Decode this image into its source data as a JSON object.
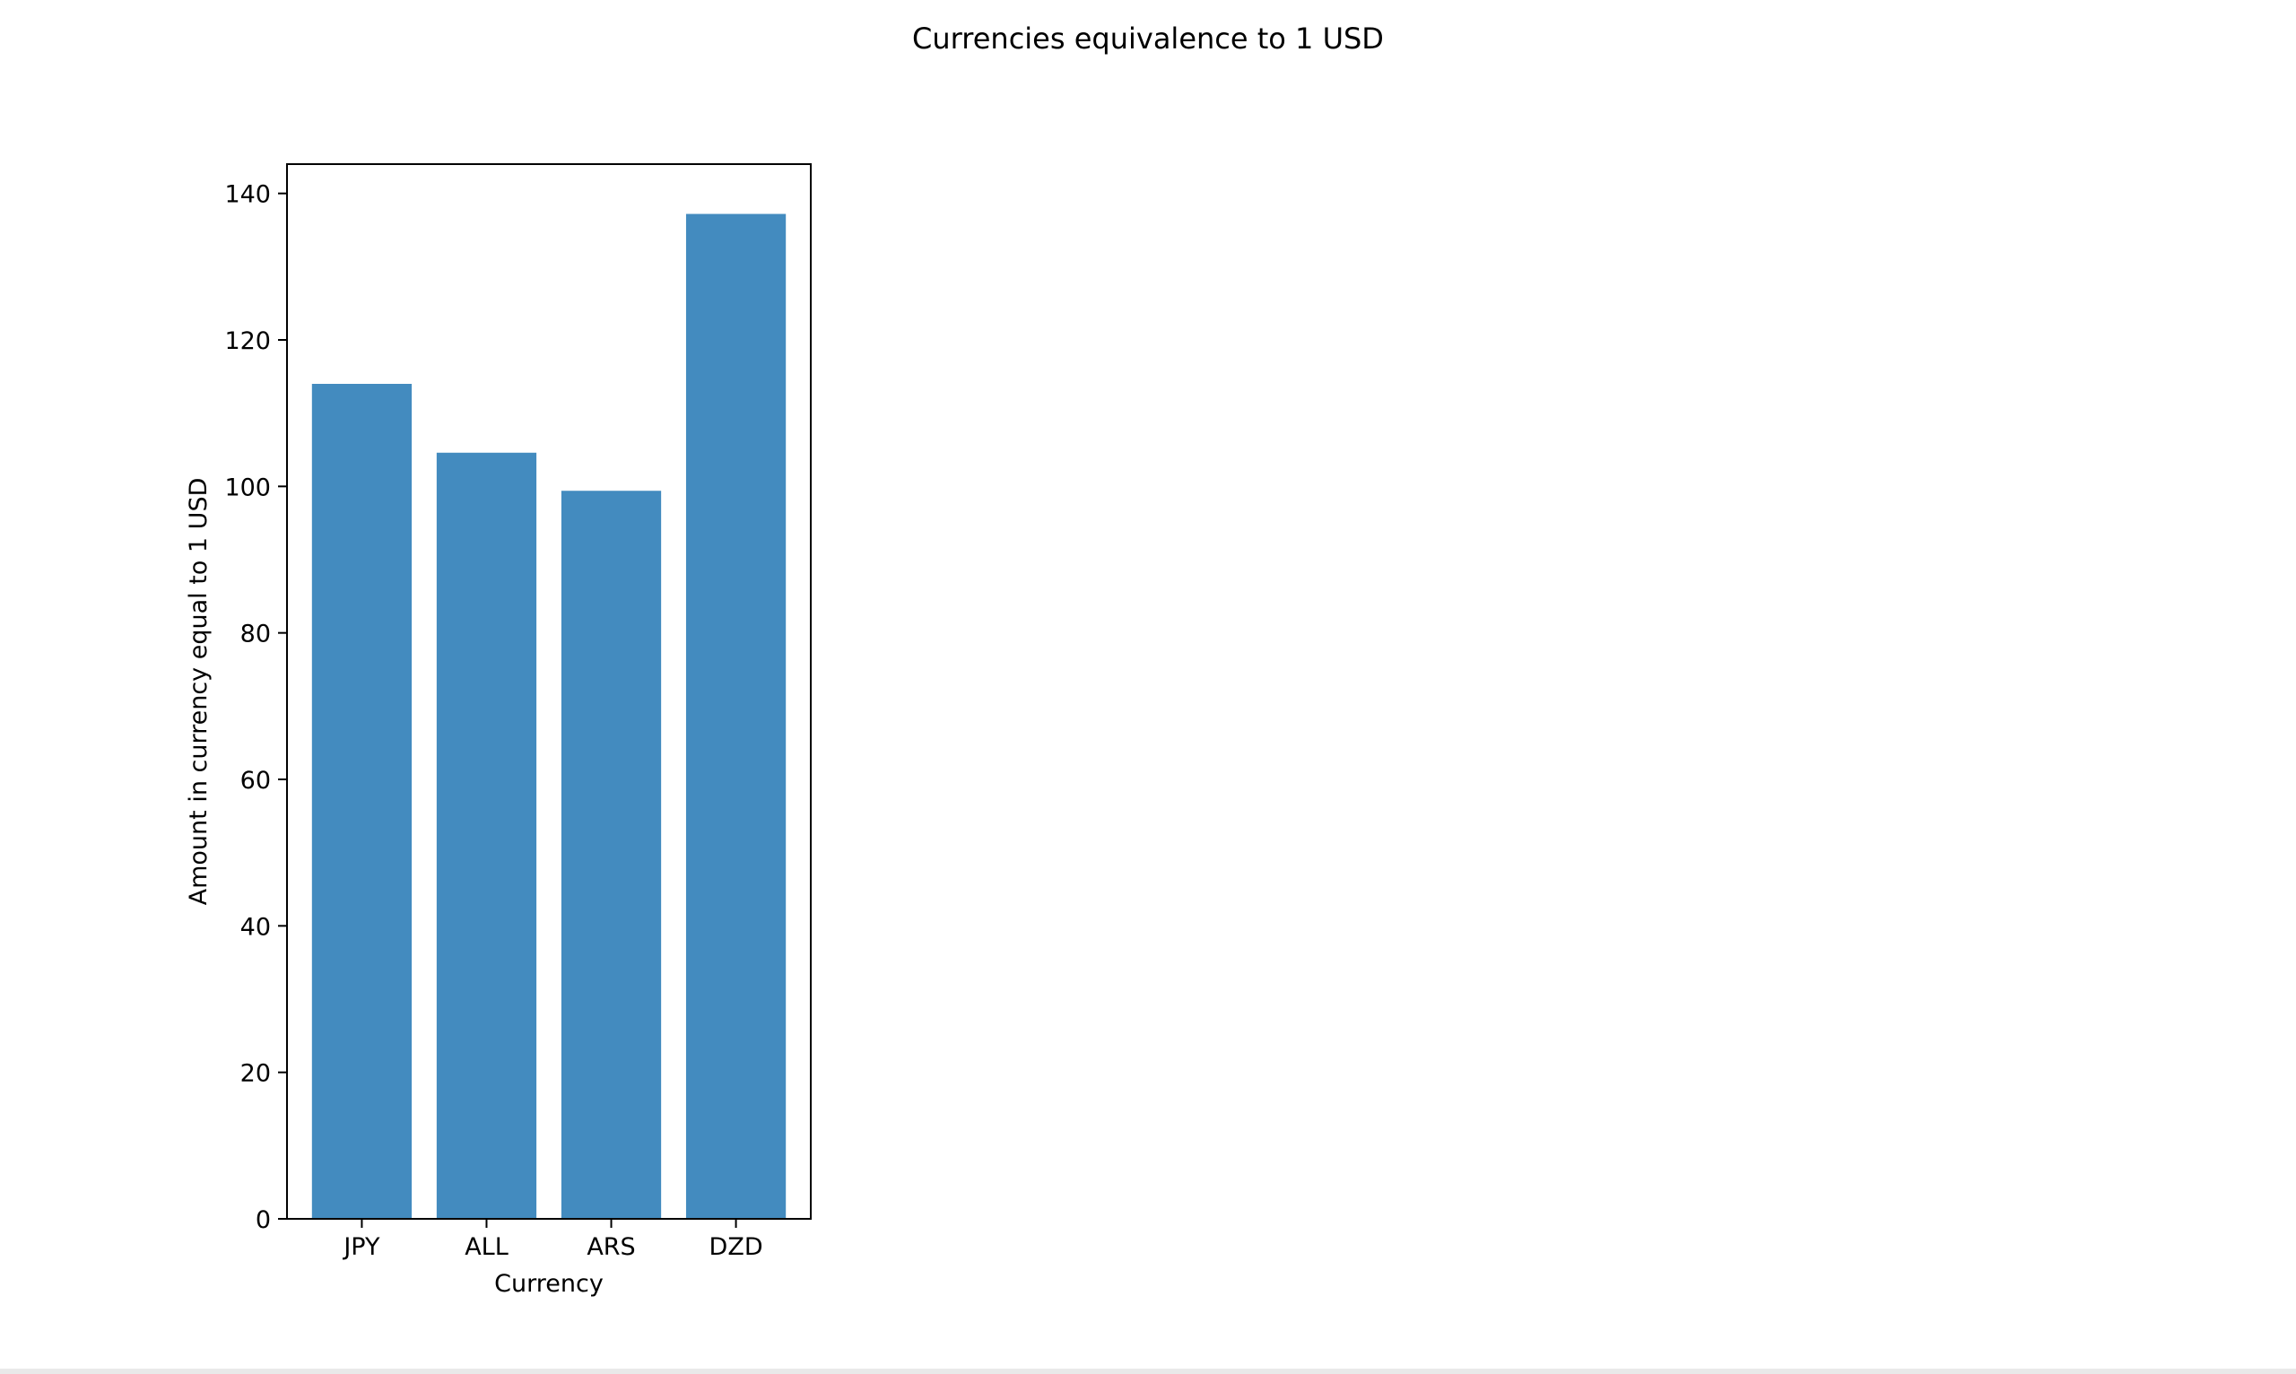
{
  "chart_data": {
    "type": "bar",
    "title": "Currencies equivalence to 1 USD",
    "xlabel": "Currency",
    "ylabel": "Amount in currency equal to 1 USD",
    "categories": [
      "JPY",
      "ALL",
      "ARS",
      "DZD"
    ],
    "values": [
      114.0,
      104.6,
      99.4,
      137.2
    ],
    "ylim": [
      0,
      144
    ],
    "yticks": [
      0,
      20,
      40,
      60,
      80,
      100,
      120,
      140
    ],
    "bar_color": "#438bbf",
    "grid": false,
    "legend": "none"
  }
}
